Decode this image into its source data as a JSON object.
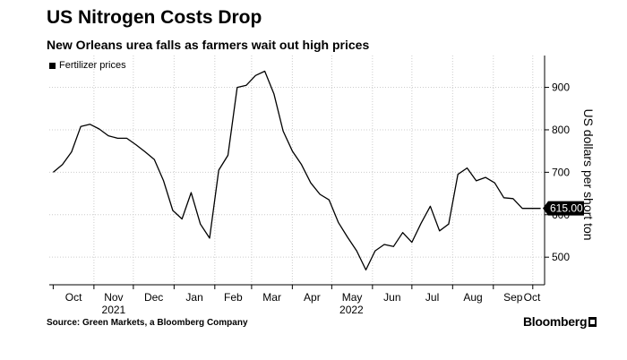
{
  "title": "US Nitrogen Costs Drop",
  "subtitle": "New Orleans urea falls as farmers wait out high prices",
  "source": "Source: Green Markets, a Bloomberg Company",
  "brand": "Bloomberg",
  "chart_data": {
    "type": "line",
    "ylabel": "US dollars per short ton",
    "ylim": [
      435,
      975
    ],
    "yticks": [
      500,
      600,
      700,
      800,
      900
    ],
    "x_axis": {
      "month_labels": [
        "Oct",
        "Nov",
        "Dec",
        "Jan",
        "Feb",
        "Mar",
        "Apr",
        "May",
        "Jun",
        "Jul",
        "Aug",
        "Sep",
        "Oct"
      ],
      "year_labels": [
        "2021",
        "2022"
      ]
    },
    "grid": true,
    "legend_position": "top-left",
    "last_value_label": "615.00",
    "series": [
      {
        "name": "Fertilizer prices",
        "x": [
          "2021-10-01",
          "2021-10-08",
          "2021-10-15",
          "2021-10-22",
          "2021-10-29",
          "2021-11-05",
          "2021-11-12",
          "2021-11-19",
          "2021-11-26",
          "2021-12-03",
          "2021-12-10",
          "2021-12-17",
          "2021-12-24",
          "2021-12-31",
          "2022-01-07",
          "2022-01-14",
          "2022-01-21",
          "2022-01-28",
          "2022-02-04",
          "2022-02-11",
          "2022-02-18",
          "2022-02-25",
          "2022-03-04",
          "2022-03-11",
          "2022-03-18",
          "2022-03-25",
          "2022-04-01",
          "2022-04-08",
          "2022-04-15",
          "2022-04-22",
          "2022-04-29",
          "2022-05-06",
          "2022-05-13",
          "2022-05-20",
          "2022-05-27",
          "2022-06-03",
          "2022-06-10",
          "2022-06-17",
          "2022-06-24",
          "2022-07-01",
          "2022-07-08",
          "2022-07-15",
          "2022-07-22",
          "2022-07-29",
          "2022-08-05",
          "2022-08-12",
          "2022-08-19",
          "2022-08-26",
          "2022-09-02",
          "2022-09-09",
          "2022-09-16",
          "2022-09-23",
          "2022-09-30",
          "2022-10-07"
        ],
        "values": [
          700,
          718,
          748,
          808,
          813,
          802,
          786,
          780,
          780,
          765,
          748,
          730,
          680,
          610,
          590,
          652,
          578,
          545,
          705,
          740,
          900,
          905,
          928,
          938,
          885,
          797,
          750,
          718,
          675,
          648,
          635,
          582,
          547,
          515,
          470,
          515,
          530,
          525,
          558,
          535,
          580,
          620,
          562,
          578,
          695,
          710,
          680,
          688,
          675,
          640,
          638,
          615,
          615,
          615
        ]
      }
    ]
  }
}
